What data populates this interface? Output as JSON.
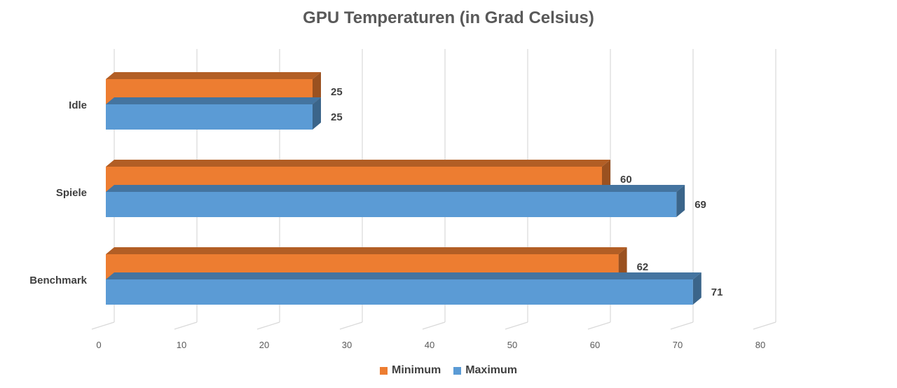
{
  "chart_data": {
    "type": "bar",
    "orientation": "horizontal",
    "title": "GPU Temperaturen (in Grad Celsius)",
    "categories": [
      "Idle",
      "Spiele",
      "Benchmark"
    ],
    "series": [
      {
        "name": "Minimum",
        "values": [
          25,
          60,
          62
        ],
        "color": "#ED7D31"
      },
      {
        "name": "Maximum",
        "values": [
          25,
          69,
          71
        ],
        "color": "#5B9BD5"
      }
    ],
    "xlim": [
      0,
      80
    ],
    "x_ticks": [
      "0",
      "10",
      "20",
      "30",
      "40",
      "50",
      "60",
      "70",
      "80"
    ],
    "grid": true,
    "legend_position": "bottom",
    "data_labels": true
  }
}
